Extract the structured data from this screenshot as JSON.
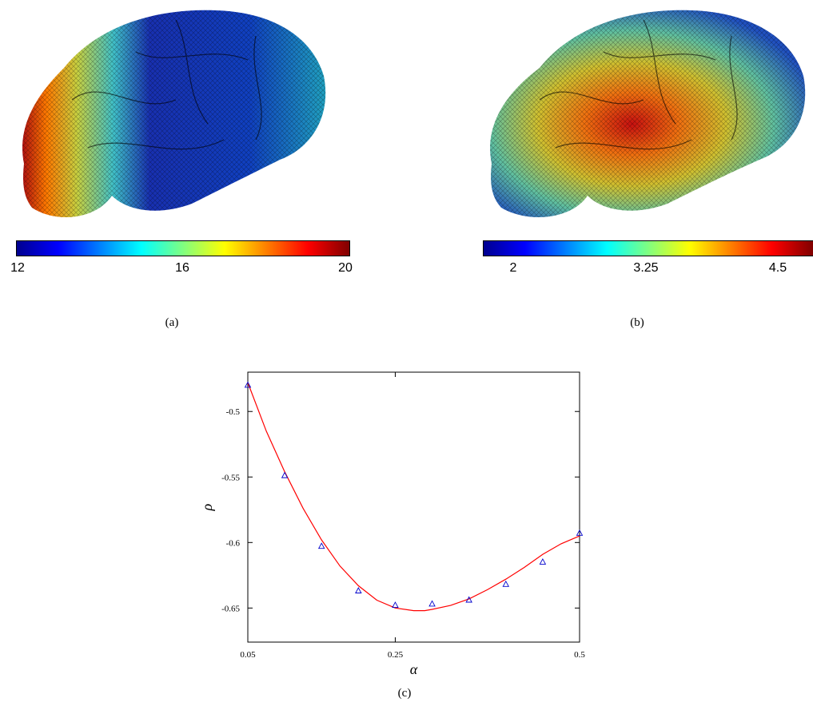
{
  "panel_a": {
    "caption": "(a)",
    "colorbar": {
      "ticks": [
        "12",
        "16",
        "20"
      ],
      "min": 12,
      "max": 20
    }
  },
  "panel_b": {
    "caption": "(b)",
    "colorbar": {
      "ticks": [
        "2",
        "3.25",
        "4.5"
      ],
      "min": 1.6,
      "max": 5.0
    }
  },
  "panel_c": {
    "caption": "(c)"
  },
  "chart_data": {
    "type": "scatter",
    "title": "",
    "xlabel": "α",
    "ylabel": "ρ",
    "xlim": [
      0.05,
      0.5
    ],
    "ylim": [
      -0.676,
      -0.47
    ],
    "xticks": [
      "0.05",
      "0.25",
      "0.5"
    ],
    "yticks": [
      "-0.5",
      "-0.55",
      "-0.6",
      "-0.65"
    ],
    "grid": false,
    "series": [
      {
        "marker": "triangle",
        "color": "#0000cc",
        "x": [
          0.05,
          0.1,
          0.15,
          0.2,
          0.25,
          0.3,
          0.35,
          0.4,
          0.45,
          0.5
        ],
        "y": [
          -0.48,
          -0.549,
          -0.603,
          -0.637,
          -0.648,
          -0.647,
          -0.644,
          -0.632,
          -0.615,
          -0.593
        ]
      },
      {
        "marker": "line",
        "color": "#ff0000",
        "x": [
          0.05,
          0.075,
          0.1,
          0.125,
          0.15,
          0.175,
          0.2,
          0.225,
          0.25,
          0.275,
          0.29,
          0.3,
          0.325,
          0.35,
          0.375,
          0.4,
          0.425,
          0.45,
          0.475,
          0.5
        ],
        "y": [
          -0.478,
          -0.515,
          -0.546,
          -0.574,
          -0.598,
          -0.618,
          -0.633,
          -0.644,
          -0.65,
          -0.652,
          -0.652,
          -0.651,
          -0.648,
          -0.643,
          -0.636,
          -0.628,
          -0.619,
          -0.609,
          -0.601,
          -0.595
        ]
      }
    ]
  }
}
